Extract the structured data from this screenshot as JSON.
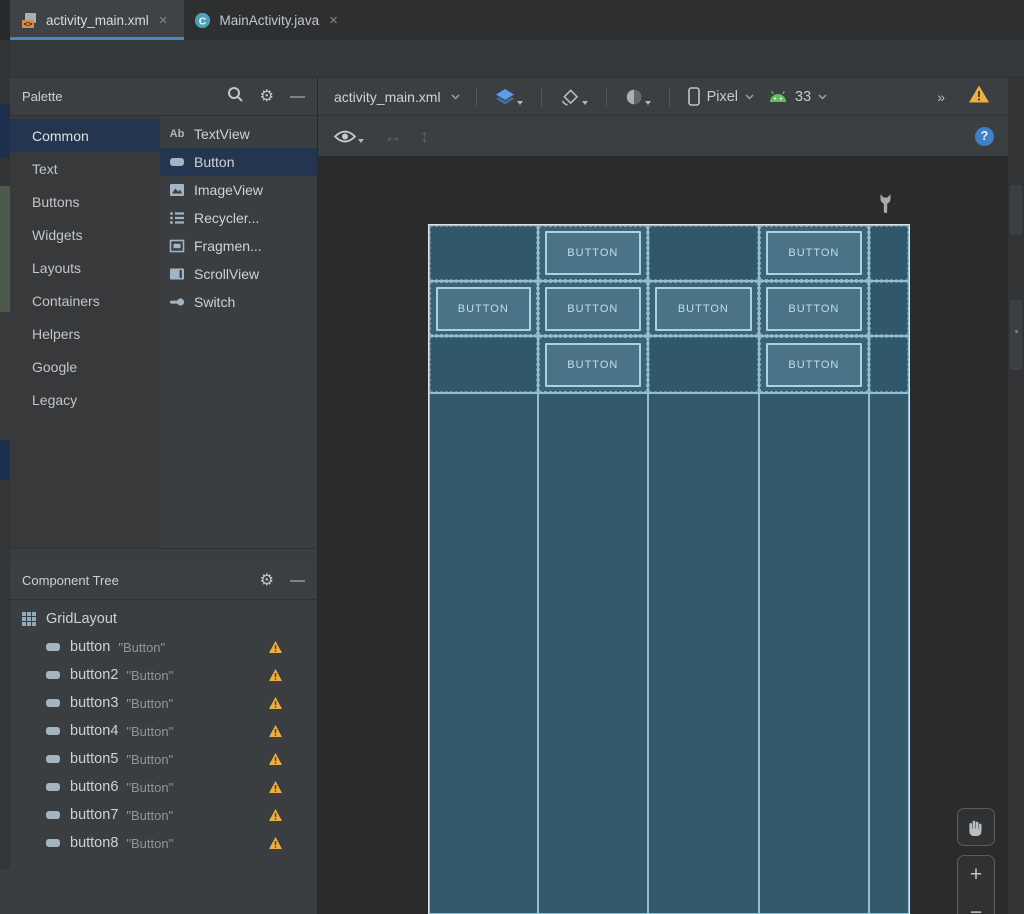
{
  "colors": {
    "selection_blue": "#4a86c4",
    "select_navy": "#24364f",
    "warning_orange": "#edaf43",
    "android_green": "#65bd63",
    "help_blue": "#3f80c6"
  },
  "tabs": {
    "items": [
      {
        "label": "activity_main.xml",
        "icon": "layout-xml-file-icon",
        "selected": true,
        "close": "×"
      },
      {
        "label": "MainActivity.java",
        "icon": "java-class-icon",
        "selected": false,
        "close": "×"
      }
    ]
  },
  "palette": {
    "title": "Palette",
    "minimize_glyph": "—",
    "gear_glyph": "⚙",
    "categories": [
      {
        "label": "Common",
        "selected": true
      },
      {
        "label": "Text"
      },
      {
        "label": "Buttons"
      },
      {
        "label": "Widgets"
      },
      {
        "label": "Layouts"
      },
      {
        "label": "Containers"
      },
      {
        "label": "Helpers"
      },
      {
        "label": "Google"
      },
      {
        "label": "Legacy"
      }
    ],
    "items": [
      {
        "label": "TextView",
        "icon": "textview-icon"
      },
      {
        "label": "Button",
        "icon": "button-icon",
        "selected": true
      },
      {
        "label": "ImageView",
        "icon": "imageview-icon"
      },
      {
        "label": "Recycler...",
        "icon": "recyclerview-icon"
      },
      {
        "label": "Fragmen...",
        "icon": "fragment-icon"
      },
      {
        "label": "ScrollView",
        "icon": "scrollview-icon"
      },
      {
        "label": "Switch",
        "icon": "switch-icon"
      }
    ]
  },
  "design_toolbar": {
    "file_label": "activity_main.xml",
    "device_label": "Pixel",
    "api_level": "33",
    "overflow_glyph": "»"
  },
  "toolbar2": {
    "help_glyph": "?"
  },
  "component_tree": {
    "title": "Component Tree",
    "minimize_glyph": "—",
    "gear_glyph": "⚙",
    "root_label": "GridLayout",
    "items": [
      {
        "id": "button",
        "text": "\"Button\""
      },
      {
        "id": "button2",
        "text": "\"Button\""
      },
      {
        "id": "button3",
        "text": "\"Button\""
      },
      {
        "id": "button4",
        "text": "\"Button\""
      },
      {
        "id": "button5",
        "text": "\"Button\""
      },
      {
        "id": "button6",
        "text": "\"Button\""
      },
      {
        "id": "button7",
        "text": "\"Button\""
      },
      {
        "id": "button8",
        "text": "\"Button\""
      }
    ]
  },
  "canvas": {
    "button_label": "BUTTON",
    "grid": {
      "columns": [
        109,
        111,
        111,
        111,
        40
      ],
      "rows": [
        56,
        55,
        57,
        521
      ],
      "placements": [
        [
          0,
          1,
          0,
          1,
          0
        ],
        [
          1,
          1,
          1,
          1,
          0
        ],
        [
          0,
          1,
          0,
          1,
          0
        ],
        [
          0,
          0,
          0,
          0,
          0
        ]
      ]
    },
    "colors": {
      "cell_empty": "#30576a",
      "cell_button": "#3c6374",
      "cell_tail": "#33596b",
      "grid_line": "#8cc0d4",
      "button_fill": "#4a7388",
      "button_border": "#a8d4e2",
      "button_text": "#c2dde7",
      "frame_border": "#e0e3e5"
    }
  },
  "zoom_controls": {
    "zoom_in": "+",
    "zoom_out": "−"
  }
}
